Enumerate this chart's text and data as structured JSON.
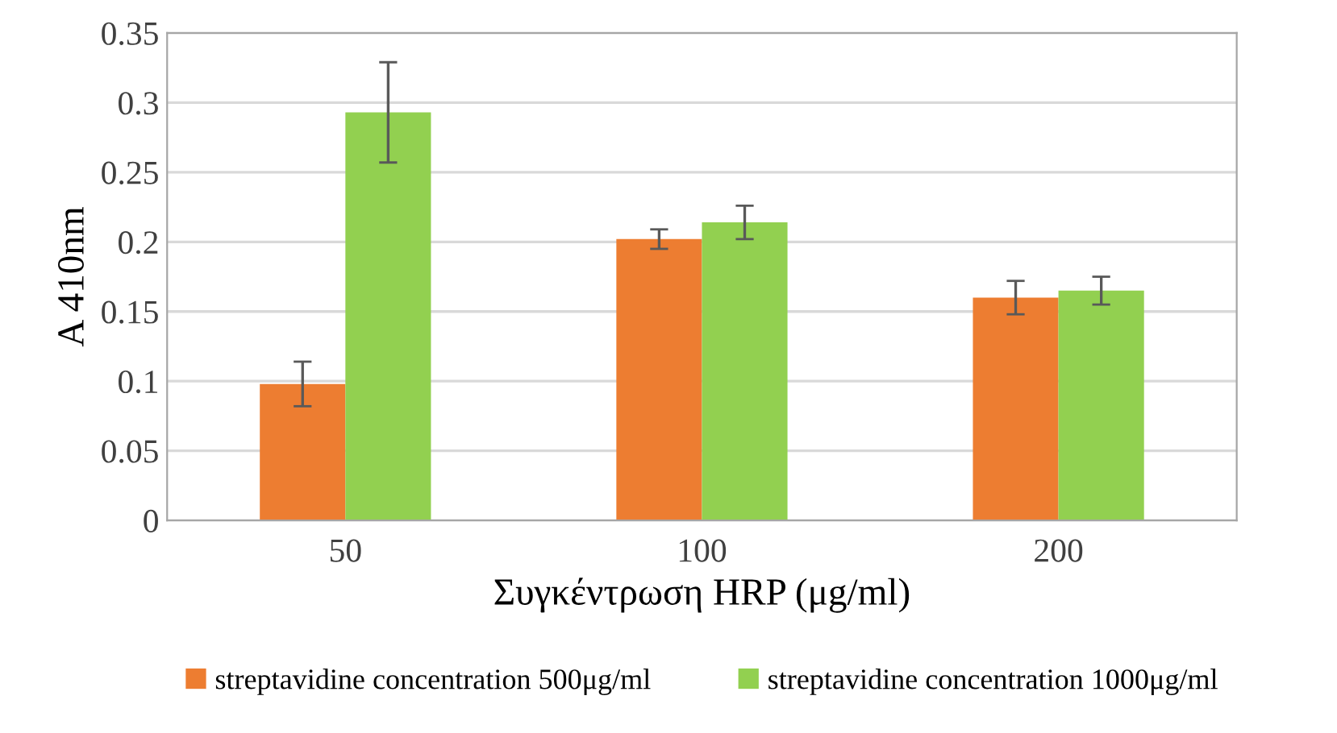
{
  "chart_data": {
    "type": "bar",
    "xlabel": "Συγκέντρωση HRP (μg/ml)",
    "ylabel": "A 410nm",
    "categories": [
      "50",
      "100",
      "200"
    ],
    "series": [
      {
        "name": "streptavidine concentration 500μg/ml",
        "color": "#ed7d31",
        "values": [
          0.098,
          0.202,
          0.16
        ],
        "errors": [
          0.016,
          0.007,
          0.012
        ]
      },
      {
        "name": "streptavidine concentration 1000μg/ml",
        "color": "#92d050",
        "values": [
          0.293,
          0.214,
          0.165
        ],
        "errors": [
          0.036,
          0.012,
          0.01
        ]
      }
    ],
    "ylim": [
      0,
      0.35
    ],
    "yticks": [
      0,
      0.05,
      0.1,
      0.15,
      0.2,
      0.25,
      0.3,
      0.35
    ],
    "grid": "y",
    "legend": "bottom"
  }
}
